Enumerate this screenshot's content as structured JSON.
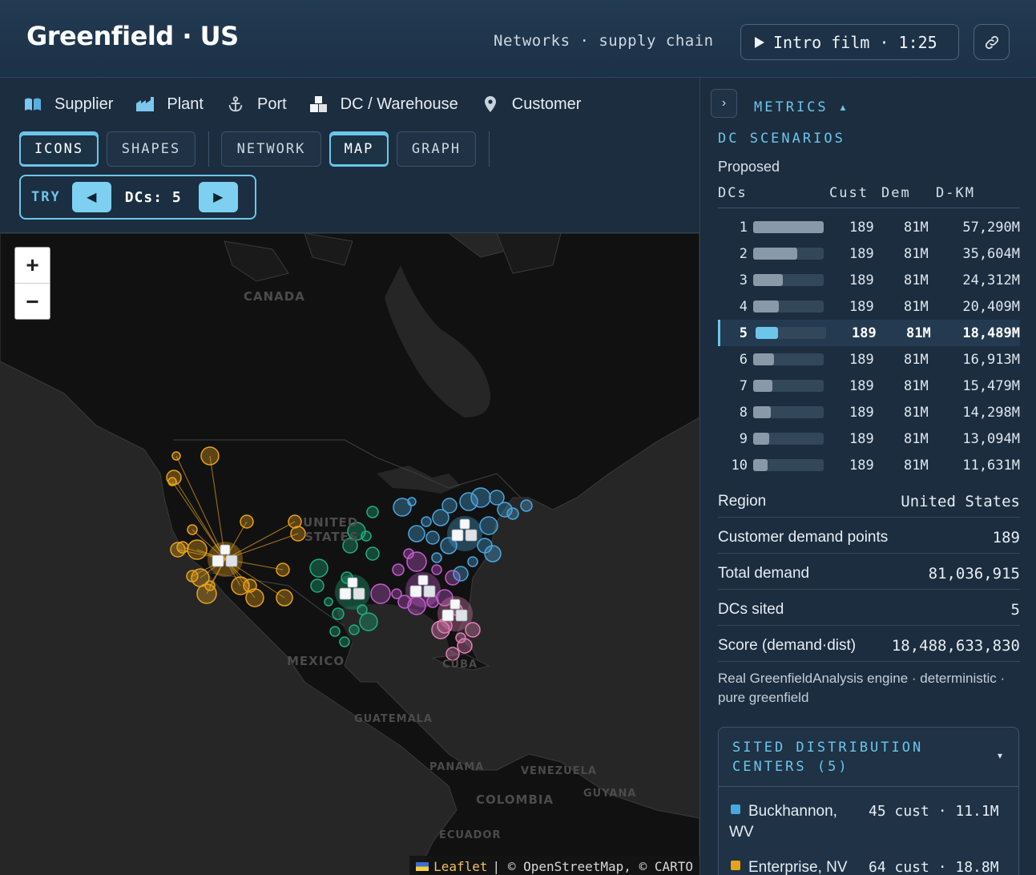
{
  "header": {
    "title": "Greenfield · US",
    "subtitle": "Networks · supply chain",
    "film_button": "Intro film · 1:25",
    "film_icon": "play-icon",
    "link_icon": "link-icon"
  },
  "legend": [
    {
      "label": "Supplier",
      "icon": "supplier-icon"
    },
    {
      "label": "Plant",
      "icon": "plant-icon"
    },
    {
      "label": "Port",
      "icon": "anchor-icon"
    },
    {
      "label": "DC / Warehouse",
      "icon": "warehouse-icon"
    },
    {
      "label": "Customer",
      "icon": "map-pin-icon"
    }
  ],
  "view_toggles": {
    "icons": "ICONS",
    "shapes": "SHAPES",
    "network": "NETWORK",
    "map": "MAP",
    "graph": "GRAPH",
    "active": [
      "ICONS",
      "MAP"
    ]
  },
  "try": {
    "label": "TRY",
    "prev": "◀",
    "next": "▶",
    "dcs_text": "DCs: 5"
  },
  "map": {
    "zoom_in": "+",
    "zoom_out": "−",
    "labels": [
      {
        "text": "CANADA"
      },
      {
        "text": "UNITED"
      },
      {
        "text": "STATES"
      },
      {
        "text": "MEXICO"
      },
      {
        "text": "CUBA"
      },
      {
        "text": "GUATEMALA"
      },
      {
        "text": "PANAMA"
      },
      {
        "text": "VENEZUELA"
      },
      {
        "text": "GUYANA"
      },
      {
        "text": "COLOMBIA"
      },
      {
        "text": "ECUADOR"
      }
    ],
    "attribution": {
      "leaflet": "Leaflet",
      "rest": "| © OpenStreetMap, © CARTO"
    },
    "cluster_colors": {
      "west": "#e8a21a",
      "central": "#1fae7f",
      "southeast": "#c65bd1",
      "northeast": "#4aa6de",
      "florida": "#e57fb8"
    }
  },
  "panel": {
    "metrics_title": "METRICS ▴",
    "collapse": "›",
    "scenarios_title": "DC SCENARIOS",
    "proposed": "Proposed",
    "columns": {
      "dcs": "DCs",
      "cust": "Cust",
      "dem": "Dem",
      "dkm": "D-KM"
    },
    "rows": [
      {
        "n": "1",
        "cust": "189",
        "dem": "81M",
        "dkm": "57,290M",
        "fill": 1.0
      },
      {
        "n": "2",
        "cust": "189",
        "dem": "81M",
        "dkm": "35,604M",
        "fill": 0.62
      },
      {
        "n": "3",
        "cust": "189",
        "dem": "81M",
        "dkm": "24,312M",
        "fill": 0.42
      },
      {
        "n": "4",
        "cust": "189",
        "dem": "81M",
        "dkm": "20,409M",
        "fill": 0.36
      },
      {
        "n": "5",
        "cust": "189",
        "dem": "81M",
        "dkm": "18,489M",
        "fill": 0.32,
        "selected": true
      },
      {
        "n": "6",
        "cust": "189",
        "dem": "81M",
        "dkm": "16,913M",
        "fill": 0.3
      },
      {
        "n": "7",
        "cust": "189",
        "dem": "81M",
        "dkm": "15,479M",
        "fill": 0.27
      },
      {
        "n": "8",
        "cust": "189",
        "dem": "81M",
        "dkm": "14,298M",
        "fill": 0.25
      },
      {
        "n": "9",
        "cust": "189",
        "dem": "81M",
        "dkm": "13,094M",
        "fill": 0.23
      },
      {
        "n": "10",
        "cust": "189",
        "dem": "81M",
        "dkm": "11,631M",
        "fill": 0.2
      }
    ],
    "stats": [
      {
        "label": "Region",
        "value": "United States"
      },
      {
        "label": "Customer demand points",
        "value": "189"
      },
      {
        "label": "Total demand",
        "value": "81,036,915"
      },
      {
        "label": "DCs sited",
        "value": "5"
      },
      {
        "label": "Score (demand·dist)",
        "value": "18,488,633,830"
      }
    ],
    "engine_note": "Real GreenfieldAnalysis engine · deterministic · pure greenfield",
    "sited_title": "SITED DISTRIBUTION CENTERS (5)",
    "sited_caret": "▾",
    "sites": [
      {
        "name": "Buckhannon, WV",
        "meta": "45 cust · 11.1M",
        "color": "#4aa6de"
      },
      {
        "name": "Enterprise, NV",
        "meta": "64 cust · 18.8M",
        "color": "#e8a21a"
      }
    ]
  }
}
